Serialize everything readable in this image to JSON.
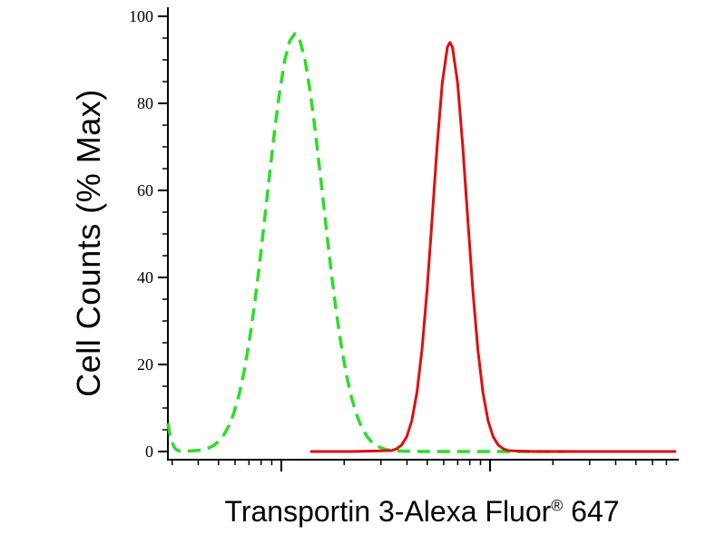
{
  "chart_data": {
    "type": "line",
    "subtype": "flow-cytometry-histogram-overlay",
    "title": "",
    "ylabel": "Cell Counts (% Max)",
    "xlabel": "Transportin 3-Alexa Fluor® 647",
    "xlabel_parts": {
      "main": "Transportin 3-Alexa Fluor",
      "sup": "®",
      "tail": " 647"
    },
    "ylim": [
      0,
      100
    ],
    "yticks": [
      0,
      20,
      40,
      60,
      80,
      100
    ],
    "y_minor_tick_step": 5,
    "x_scale": "log",
    "x_tick_labels": [],
    "x_axis_numeric_labels_visible": false,
    "grid": false,
    "legend": "none",
    "axis_color": "#000000",
    "background_color": "#ffffff",
    "series": [
      {
        "id": "green-dashed-curve",
        "style_name": "green dashed",
        "color": "#2bdd2b",
        "line_style": "dashed",
        "width": 3.5,
        "peak": {
          "x_fraction": 0.25,
          "y_percent": 96
        },
        "points": [
          [
            0.0,
            6.5
          ],
          [
            0.004,
            4.0
          ],
          [
            0.008,
            2.2
          ],
          [
            0.012,
            1.1
          ],
          [
            0.016,
            0.5
          ],
          [
            0.022,
            0.15
          ],
          [
            0.03,
            0.05
          ],
          [
            0.06,
            0.25
          ],
          [
            0.07,
            0.45
          ],
          [
            0.08,
            0.8
          ],
          [
            0.09,
            1.4
          ],
          [
            0.1,
            2.3
          ],
          [
            0.11,
            3.8
          ],
          [
            0.12,
            5.9
          ],
          [
            0.13,
            8.9
          ],
          [
            0.14,
            13.0
          ],
          [
            0.15,
            18.4
          ],
          [
            0.16,
            25.2
          ],
          [
            0.17,
            33.3
          ],
          [
            0.18,
            42.7
          ],
          [
            0.19,
            53.0
          ],
          [
            0.2,
            63.5
          ],
          [
            0.21,
            73.7
          ],
          [
            0.22,
            82.7
          ],
          [
            0.23,
            89.9
          ],
          [
            0.24,
            94.4
          ],
          [
            0.25,
            96.0
          ],
          [
            0.26,
            94.4
          ],
          [
            0.27,
            89.9
          ],
          [
            0.28,
            82.7
          ],
          [
            0.29,
            73.7
          ],
          [
            0.3,
            63.5
          ],
          [
            0.31,
            53.0
          ],
          [
            0.32,
            42.7
          ],
          [
            0.33,
            33.3
          ],
          [
            0.34,
            25.2
          ],
          [
            0.35,
            18.4
          ],
          [
            0.36,
            13.0
          ],
          [
            0.37,
            8.9
          ],
          [
            0.38,
            5.9
          ],
          [
            0.39,
            3.8
          ],
          [
            0.4,
            2.3
          ],
          [
            0.41,
            1.4
          ],
          [
            0.42,
            0.8
          ],
          [
            0.43,
            0.45
          ],
          [
            0.44,
            0.25
          ],
          [
            0.46,
            0.1
          ],
          [
            0.5,
            0
          ],
          [
            0.55,
            0
          ],
          [
            0.6,
            0
          ],
          [
            0.65,
            0
          ],
          [
            0.7,
            0
          ],
          [
            0.75,
            0
          ],
          [
            0.78,
            0
          ]
        ]
      },
      {
        "id": "red-solid-curve",
        "style_name": "red solid",
        "color": "#dd1010",
        "line_style": "solid",
        "width": 3,
        "peak": {
          "x_fraction": 0.555,
          "y_percent": 94
        },
        "points": [
          [
            0.28,
            0
          ],
          [
            0.32,
            0
          ],
          [
            0.36,
            0
          ],
          [
            0.4,
            0.1
          ],
          [
            0.42,
            0.15
          ],
          [
            0.43,
            0.2
          ],
          [
            0.44,
            0.2
          ],
          [
            0.45,
            0.6
          ],
          [
            0.46,
            1.5
          ],
          [
            0.47,
            3.4
          ],
          [
            0.48,
            7.1
          ],
          [
            0.49,
            13.5
          ],
          [
            0.5,
            23.4
          ],
          [
            0.51,
            37.1
          ],
          [
            0.52,
            53.6
          ],
          [
            0.53,
            70.5
          ],
          [
            0.54,
            84.8
          ],
          [
            0.55,
            92.9
          ],
          [
            0.555,
            94.0
          ],
          [
            0.56,
            92.9
          ],
          [
            0.57,
            84.8
          ],
          [
            0.58,
            70.5
          ],
          [
            0.59,
            53.6
          ],
          [
            0.6,
            37.1
          ],
          [
            0.61,
            23.4
          ],
          [
            0.62,
            13.5
          ],
          [
            0.63,
            7.1
          ],
          [
            0.64,
            3.4
          ],
          [
            0.65,
            1.5
          ],
          [
            0.66,
            0.6
          ],
          [
            0.67,
            0.2
          ],
          [
            0.69,
            0.1
          ],
          [
            0.72,
            0
          ],
          [
            0.8,
            0
          ],
          [
            0.9,
            0
          ],
          [
            1.0,
            0
          ]
        ]
      }
    ]
  }
}
